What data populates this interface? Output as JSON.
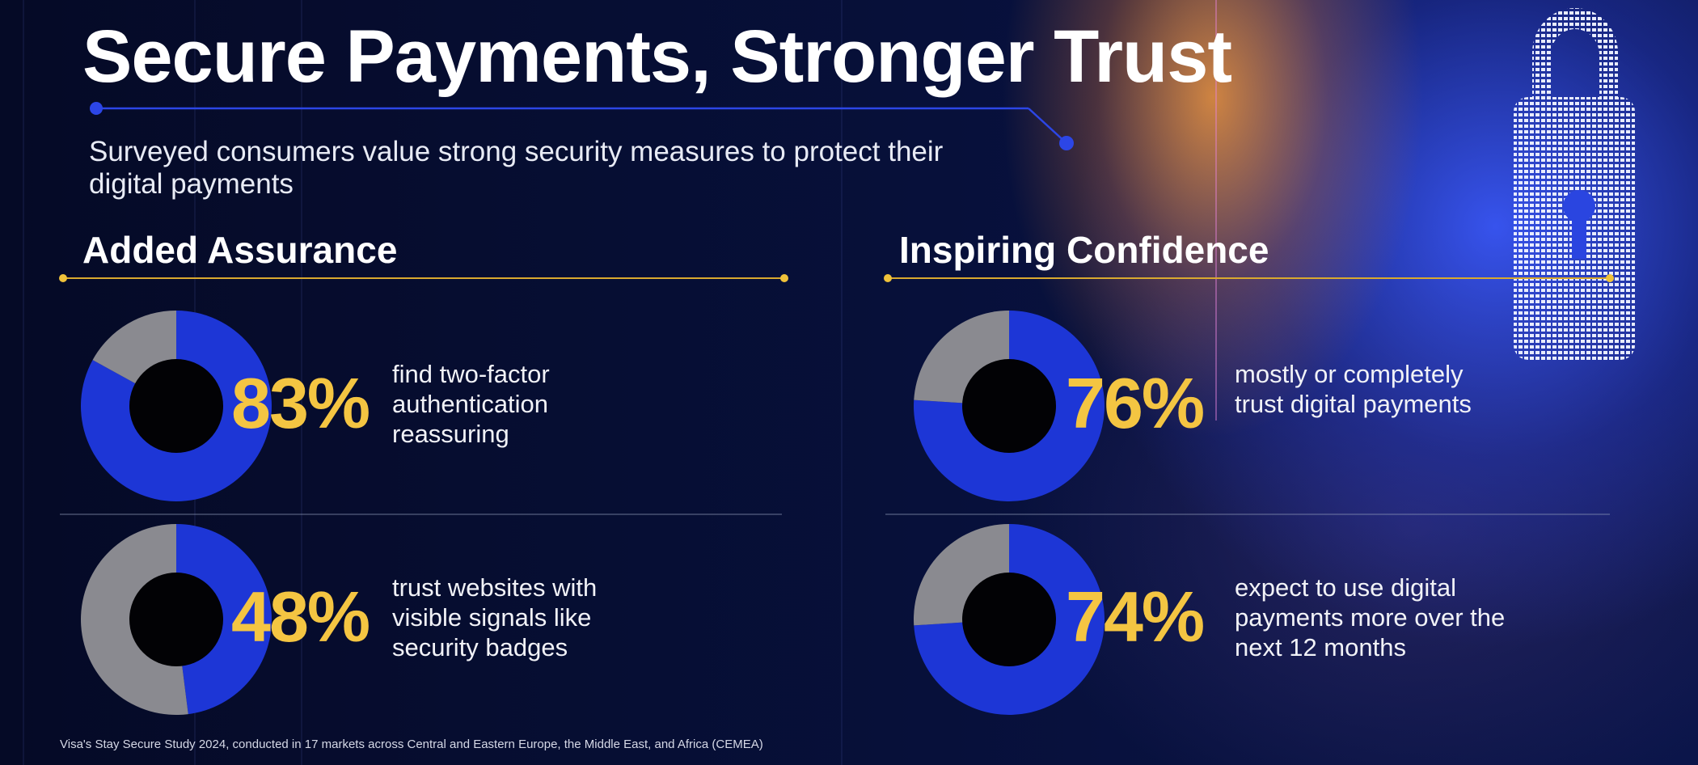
{
  "header": {
    "title": "Secure Payments, Stronger Trust",
    "subtitle": "Surveyed consumers value strong security measures to protect their digital payments"
  },
  "sections": [
    {
      "heading": "Added Assurance",
      "stats": [
        {
          "value": 83,
          "label": "83%",
          "description": "find two-factor authentication reassuring"
        },
        {
          "value": 48,
          "label": "48%",
          "description": "trust websites with visible signals like security badges"
        }
      ]
    },
    {
      "heading": "Inspiring Confidence",
      "stats": [
        {
          "value": 76,
          "label": "76%",
          "description": "mostly or completely trust digital payments"
        },
        {
          "value": 74,
          "label": "74%",
          "description": "expect to use digital payments more over the next 12 months"
        }
      ]
    }
  ],
  "footer": {
    "source": "Visa's Stay Secure Study 2024, conducted in 17 markets across Central and Eastern Europe, the Middle East, and Africa (CEMEA)"
  },
  "colors": {
    "accent_blue": "#1d36d6",
    "remainder_gray": "#8a8a90",
    "highlight_yellow": "#f4c542",
    "background": "#060b2a"
  },
  "icons": [
    "lock-icon"
  ],
  "chart_data": [
    {
      "type": "pie",
      "title": "Added Assurance",
      "categories": [
        "find two-factor authentication reassuring",
        "other"
      ],
      "values": [
        83,
        17
      ]
    },
    {
      "type": "pie",
      "title": "Added Assurance",
      "categories": [
        "trust websites with visible signals like security badges",
        "other"
      ],
      "values": [
        48,
        52
      ]
    },
    {
      "type": "pie",
      "title": "Inspiring Confidence",
      "categories": [
        "mostly or completely trust digital payments",
        "other"
      ],
      "values": [
        76,
        24
      ]
    },
    {
      "type": "pie",
      "title": "Inspiring Confidence",
      "categories": [
        "expect to use digital payments more over the next 12 months",
        "other"
      ],
      "values": [
        74,
        26
      ]
    }
  ]
}
